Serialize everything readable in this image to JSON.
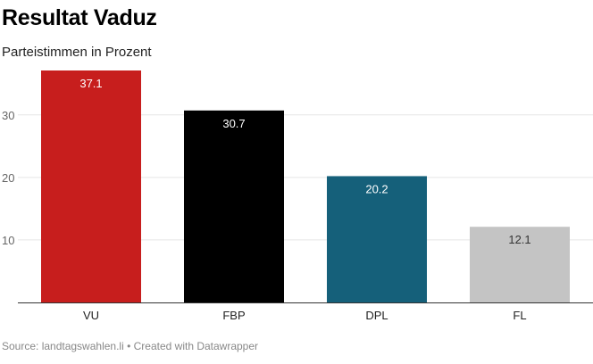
{
  "chart_data": {
    "type": "bar",
    "title": "Resultat Vaduz",
    "subtitle": "Parteistimmen in Prozent",
    "categories": [
      "VU",
      "FBP",
      "DPL",
      "FL"
    ],
    "values": [
      37.1,
      30.7,
      20.2,
      12.1
    ],
    "value_labels": [
      "37.1",
      "30.7",
      "20.2",
      "12.1"
    ],
    "colors": [
      "#c71e1d",
      "#000000",
      "#15607a",
      "#c4c4c4"
    ],
    "label_colors": [
      "#ffffff",
      "#ffffff",
      "#ffffff",
      "#333333"
    ],
    "yticks": [
      10,
      20,
      30
    ],
    "ytick_labels": [
      "10",
      "20",
      "30"
    ],
    "ylim": [
      0,
      37.1
    ],
    "grid": true,
    "xlabel": "",
    "ylabel": ""
  },
  "footer": {
    "source": "Source: landtagswahlen.li • Created with Datawrapper"
  }
}
